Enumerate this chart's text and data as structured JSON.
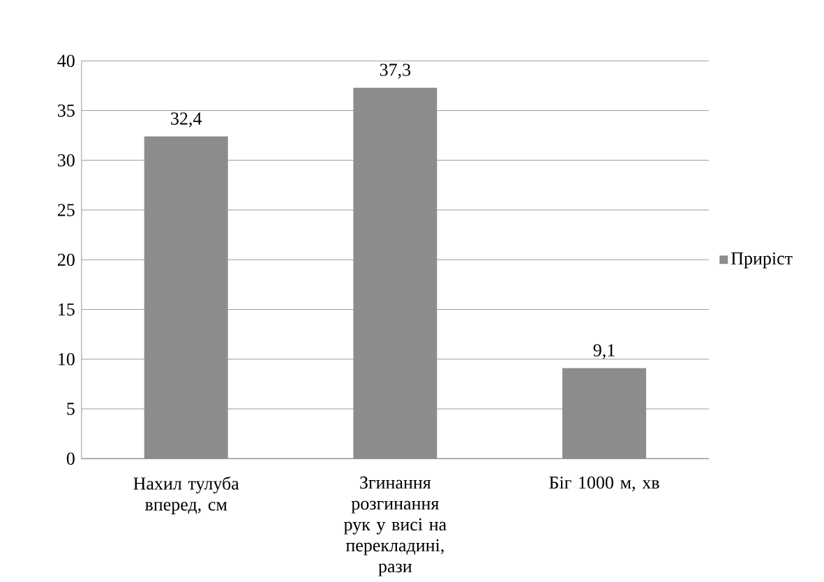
{
  "chart_data": {
    "type": "bar",
    "categories": [
      "Нахил тулуба вперед, см",
      "Згинання розгинання рук у висі на перекладині, рази",
      "Біг 1000 м, хв"
    ],
    "series": [
      {
        "name": "Приріст",
        "color": "#8c8c8c",
        "values": [
          32.4,
          37.3,
          9.1
        ],
        "value_labels": [
          "32,4",
          "37,3",
          "9,1"
        ]
      }
    ],
    "ylim": [
      0,
      40
    ],
    "yticks": [
      0,
      5,
      10,
      15,
      20,
      25,
      30,
      35,
      40
    ],
    "grid": "y",
    "legend": "right"
  }
}
